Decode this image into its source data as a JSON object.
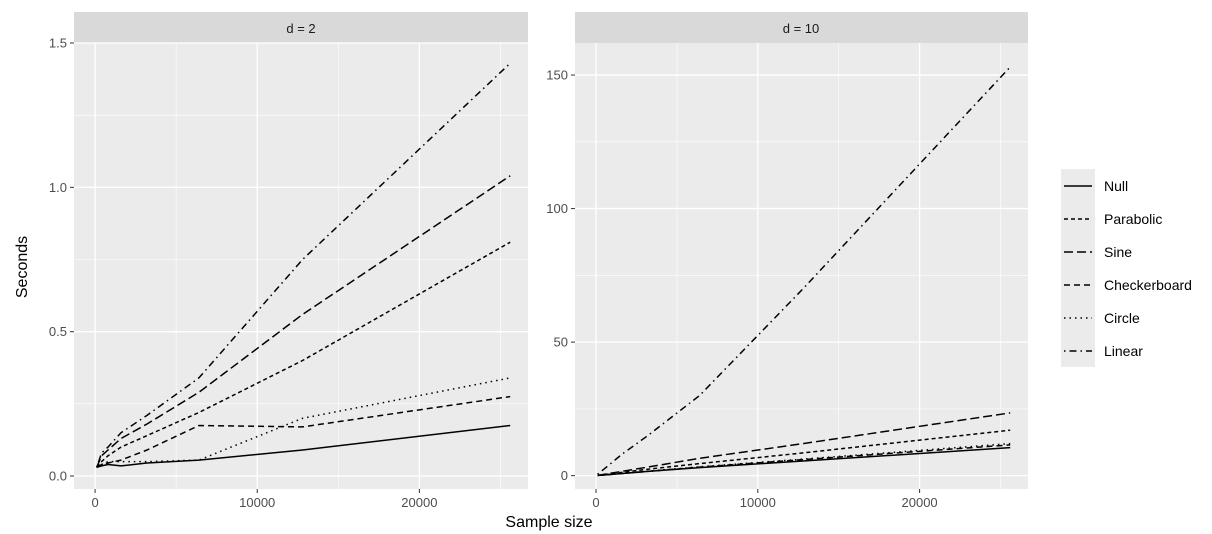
{
  "chart_data": {
    "type": "line",
    "xlabel": "Sample size",
    "ylabel": "Seconds",
    "legend_position": "right",
    "legend": [
      {
        "name": "Null",
        "dash": "solid"
      },
      {
        "name": "Parabolic",
        "dash": "dotted-short"
      },
      {
        "name": "Sine",
        "dash": "dashed-long"
      },
      {
        "name": "Checkerboard",
        "dash": "dashed"
      },
      {
        "name": "Circle",
        "dash": "dotted"
      },
      {
        "name": "Linear",
        "dash": "dotdash"
      }
    ],
    "panels": [
      {
        "strip_label": "d = 2",
        "xlim": [
          -1300,
          26700
        ],
        "ylim": [
          -0.045,
          1.5
        ],
        "x_ticks": [
          0,
          10000,
          20000
        ],
        "x_tick_labels": [
          "0",
          "10000",
          "20000"
        ],
        "y_ticks": [
          0.0,
          0.5,
          1.0,
          1.5
        ],
        "y_tick_labels": [
          "0.0",
          "0.5",
          "1.0",
          "1.5"
        ],
        "series": [
          {
            "name": "Null",
            "x": [
              100,
              400,
              800,
              1600,
              3200,
              6400,
              12800,
              25600
            ],
            "y": [
              0.03,
              0.035,
              0.04,
              0.035,
              0.045,
              0.055,
              0.09,
              0.175
            ]
          },
          {
            "name": "Parabolic",
            "x": [
              100,
              400,
              800,
              1600,
              3200,
              6400,
              12800,
              25600
            ],
            "y": [
              0.03,
              0.05,
              0.07,
              0.1,
              0.14,
              0.22,
              0.4,
              0.81
            ]
          },
          {
            "name": "Sine",
            "x": [
              100,
              400,
              800,
              1600,
              3200,
              6400,
              12800,
              25600
            ],
            "y": [
              0.03,
              0.07,
              0.09,
              0.13,
              0.18,
              0.29,
              0.56,
              1.04
            ]
          },
          {
            "name": "Checkerboard",
            "x": [
              100,
              400,
              800,
              1600,
              3200,
              6400,
              12800,
              25600
            ],
            "y": [
              0.03,
              0.04,
              0.045,
              0.055,
              0.09,
              0.175,
              0.17,
              0.275
            ]
          },
          {
            "name": "Circle",
            "x": [
              100,
              400,
              800,
              1600,
              3200,
              6400,
              12800,
              25600
            ],
            "y": [
              0.03,
              0.04,
              0.05,
              0.05,
              0.05,
              0.055,
              0.2,
              0.34
            ]
          },
          {
            "name": "Linear",
            "x": [
              100,
              400,
              800,
              1600,
              3200,
              6400,
              12800,
              25600
            ],
            "y": [
              0.03,
              0.08,
              0.1,
              0.15,
              0.21,
              0.34,
              0.75,
              1.43
            ]
          }
        ]
      },
      {
        "strip_label": "d = 10",
        "xlim": [
          -1300,
          26700
        ],
        "ylim": [
          -5,
          162
        ],
        "x_ticks": [
          0,
          10000,
          20000
        ],
        "x_tick_labels": [
          "0",
          "10000",
          "20000"
        ],
        "y_ticks": [
          0,
          50,
          100,
          150
        ],
        "y_tick_labels": [
          "0",
          "50",
          "100",
          "150"
        ],
        "series": [
          {
            "name": "Null",
            "x": [
              100,
              400,
              800,
              1600,
              3200,
              6400,
              12800,
              25600
            ],
            "y": [
              0.1,
              0.2,
              0.4,
              0.8,
              1.6,
              3,
              5.5,
              10.5
            ]
          },
          {
            "name": "Parabolic",
            "x": [
              100,
              400,
              800,
              1600,
              3200,
              6400,
              12800,
              25600
            ],
            "y": [
              0.1,
              0.3,
              0.6,
              1.2,
              2.4,
              4.5,
              8.5,
              17
            ]
          },
          {
            "name": "Sine",
            "x": [
              100,
              400,
              800,
              1600,
              3200,
              6400,
              12800,
              25600
            ],
            "y": [
              0.1,
              0.4,
              0.8,
              1.6,
              3.2,
              6.5,
              12,
              23.5
            ]
          },
          {
            "name": "Checkerboard",
            "x": [
              100,
              400,
              800,
              1600,
              3200,
              6400,
              12800,
              25600
            ],
            "y": [
              0.1,
              0.2,
              0.4,
              0.8,
              1.6,
              3.2,
              6,
              11.5
            ]
          },
          {
            "name": "Circle",
            "x": [
              100,
              400,
              800,
              1600,
              3200,
              6400,
              12800,
              25600
            ],
            "y": [
              0.1,
              0.2,
              0.4,
              0.8,
              1.7,
              3.3,
              6.2,
              12
            ]
          },
          {
            "name": "Linear",
            "x": [
              100,
              400,
              800,
              1600,
              3200,
              6400,
              12800,
              25600
            ],
            "y": [
              0.5,
              2,
              4,
              8,
              15,
              30,
              70,
              153
            ]
          }
        ]
      }
    ]
  }
}
